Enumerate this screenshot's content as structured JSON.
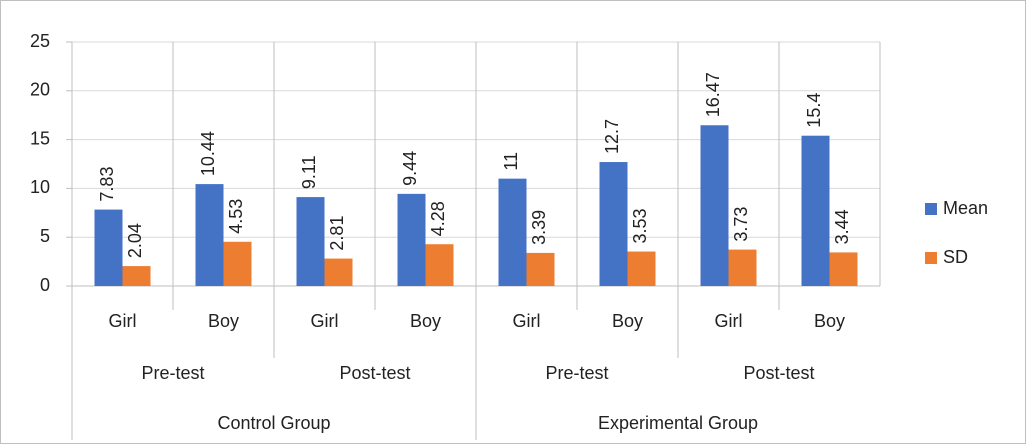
{
  "chart_data": {
    "type": "bar",
    "categories": [
      "Girl",
      "Boy",
      "Girl",
      "Boy",
      "Girl",
      "Boy",
      "Girl",
      "Boy"
    ],
    "category_levels": [
      [
        "Pre-test",
        "Post-test",
        "Pre-test",
        "Post-test"
      ],
      [
        "Control Group",
        "Experimental Group"
      ]
    ],
    "series": [
      {
        "name": "Mean",
        "color": "#4472c4",
        "values": [
          7.83,
          10.44,
          9.11,
          9.44,
          11,
          12.7,
          16.47,
          15.4
        ]
      },
      {
        "name": "SD",
        "color": "#ed7d31",
        "values": [
          2.04,
          4.53,
          2.81,
          4.28,
          3.39,
          3.53,
          3.73,
          3.44
        ]
      }
    ],
    "ylim": [
      0,
      25
    ],
    "yticks": [
      0,
      5,
      10,
      15,
      20,
      25
    ],
    "grid": true,
    "legend": "right"
  }
}
